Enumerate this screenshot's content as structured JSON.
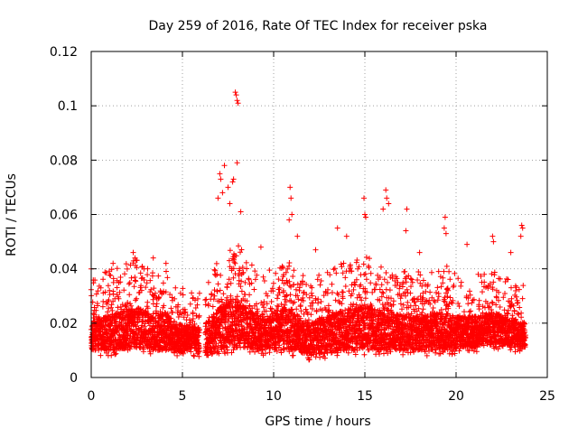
{
  "chart_data": {
    "type": "scatter",
    "title": "Day 259 of 2016, Rate Of TEC Index for receiver pska",
    "xlabel": "GPS time / hours",
    "ylabel": "ROTI / TECUs",
    "xlim": [
      0,
      25
    ],
    "ylim": [
      0,
      0.12
    ],
    "grid": true,
    "marker": "+",
    "marker_color": "#ff0000",
    "x_ticks": [
      0,
      5,
      10,
      15,
      20,
      25
    ],
    "x_tick_labels": [
      "0",
      "5",
      "10",
      "15",
      "20",
      "25"
    ],
    "y_ticks": [
      0,
      0.02,
      0.04,
      0.06,
      0.08,
      0.1,
      0.12
    ],
    "y_tick_labels": [
      "0",
      "0.02",
      "0.04",
      "0.06",
      "0.08",
      "0.1",
      "0.12"
    ],
    "data_gaps_hours": [
      [
        5.95,
        6.25
      ]
    ],
    "time_step_hours": 0.0125,
    "envelope": {
      "x_hours": [
        0,
        0.5,
        1,
        1.5,
        2,
        2.5,
        3,
        3.5,
        4,
        4.5,
        5,
        5.5,
        6,
        6.5,
        7,
        7.5,
        8,
        8.5,
        9,
        9.5,
        10,
        10.5,
        11,
        11.5,
        12,
        12.5,
        13,
        13.5,
        14,
        14.5,
        15,
        15.5,
        16,
        16.5,
        17,
        17.5,
        18,
        18.5,
        19,
        19.5,
        20,
        20.5,
        21,
        21.5,
        22,
        22.5,
        23,
        23.5,
        23.8
      ],
      "typical_low": [
        0.008,
        0.008,
        0.008,
        0.008,
        0.009,
        0.009,
        0.009,
        0.008,
        0.008,
        0.008,
        0.007,
        0.008,
        0.007,
        0.007,
        0.008,
        0.009,
        0.009,
        0.009,
        0.008,
        0.008,
        0.008,
        0.008,
        0.008,
        0.007,
        0.006,
        0.007,
        0.007,
        0.007,
        0.008,
        0.008,
        0.008,
        0.008,
        0.008,
        0.008,
        0.008,
        0.008,
        0.008,
        0.008,
        0.008,
        0.008,
        0.008,
        0.009,
        0.009,
        0.01,
        0.01,
        0.01,
        0.009,
        0.009,
        0.009
      ],
      "typical_high": [
        0.028,
        0.03,
        0.032,
        0.033,
        0.035,
        0.036,
        0.034,
        0.03,
        0.034,
        0.028,
        0.026,
        0.024,
        0.024,
        0.03,
        0.036,
        0.04,
        0.042,
        0.036,
        0.032,
        0.03,
        0.033,
        0.036,
        0.036,
        0.03,
        0.028,
        0.03,
        0.032,
        0.034,
        0.036,
        0.036,
        0.038,
        0.036,
        0.036,
        0.034,
        0.032,
        0.03,
        0.032,
        0.032,
        0.034,
        0.033,
        0.03,
        0.03,
        0.03,
        0.03,
        0.032,
        0.03,
        0.028,
        0.026,
        0.026
      ]
    },
    "notable_points": [
      {
        "x": 7.9,
        "y": 0.105
      },
      {
        "x": 7.95,
        "y": 0.104
      },
      {
        "x": 8.0,
        "y": 0.102
      },
      {
        "x": 8.05,
        "y": 0.101
      },
      {
        "x": 7.05,
        "y": 0.075
      },
      {
        "x": 7.1,
        "y": 0.073
      },
      {
        "x": 7.3,
        "y": 0.078
      },
      {
        "x": 7.5,
        "y": 0.07
      },
      {
        "x": 7.75,
        "y": 0.072
      },
      {
        "x": 7.8,
        "y": 0.073
      },
      {
        "x": 8.0,
        "y": 0.079
      },
      {
        "x": 8.2,
        "y": 0.061
      },
      {
        "x": 7.6,
        "y": 0.064
      },
      {
        "x": 7.2,
        "y": 0.068
      },
      {
        "x": 6.95,
        "y": 0.066
      },
      {
        "x": 10.9,
        "y": 0.07
      },
      {
        "x": 10.95,
        "y": 0.066
      },
      {
        "x": 11.0,
        "y": 0.06
      },
      {
        "x": 10.85,
        "y": 0.058
      },
      {
        "x": 11.3,
        "y": 0.052
      },
      {
        "x": 13.5,
        "y": 0.055
      },
      {
        "x": 14.0,
        "y": 0.052
      },
      {
        "x": 14.95,
        "y": 0.066
      },
      {
        "x": 15.0,
        "y": 0.06
      },
      {
        "x": 15.05,
        "y": 0.059
      },
      {
        "x": 16.15,
        "y": 0.069
      },
      {
        "x": 16.2,
        "y": 0.066
      },
      {
        "x": 16.0,
        "y": 0.062
      },
      {
        "x": 16.3,
        "y": 0.064
      },
      {
        "x": 17.3,
        "y": 0.062
      },
      {
        "x": 17.25,
        "y": 0.054
      },
      {
        "x": 18.0,
        "y": 0.046
      },
      {
        "x": 19.4,
        "y": 0.059
      },
      {
        "x": 19.35,
        "y": 0.055
      },
      {
        "x": 19.45,
        "y": 0.053
      },
      {
        "x": 20.6,
        "y": 0.049
      },
      {
        "x": 22.0,
        "y": 0.052
      },
      {
        "x": 22.05,
        "y": 0.05
      },
      {
        "x": 23.6,
        "y": 0.056
      },
      {
        "x": 23.65,
        "y": 0.055
      },
      {
        "x": 23.55,
        "y": 0.052
      },
      {
        "x": 23.0,
        "y": 0.046
      },
      {
        "x": 2.3,
        "y": 0.046
      },
      {
        "x": 2.4,
        "y": 0.044
      },
      {
        "x": 3.4,
        "y": 0.044
      },
      {
        "x": 4.1,
        "y": 0.042
      },
      {
        "x": 0.0,
        "y": 0.04
      },
      {
        "x": 1.2,
        "y": 0.042
      },
      {
        "x": 9.3,
        "y": 0.048
      },
      {
        "x": 12.3,
        "y": 0.047
      }
    ]
  }
}
